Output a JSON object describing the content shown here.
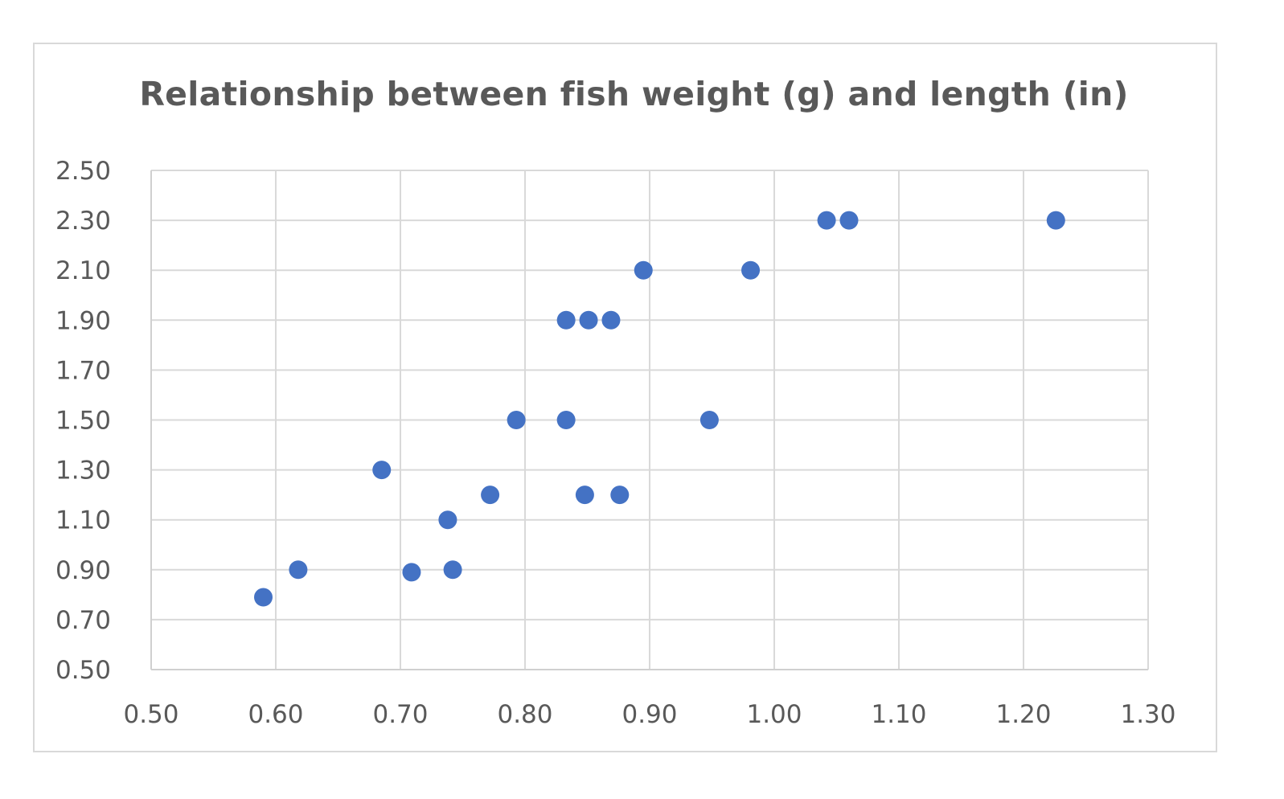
{
  "chart_data": {
    "type": "scatter",
    "title": "Relationship between fish weight (g) and length (in)",
    "xlabel": "",
    "ylabel": "",
    "xlim": [
      0.5,
      1.3
    ],
    "ylim": [
      0.5,
      2.5
    ],
    "x_ticks": [
      "0.50",
      "0.60",
      "0.70",
      "0.80",
      "0.90",
      "1.00",
      "1.10",
      "1.20",
      "1.30"
    ],
    "y_ticks": [
      "0.50",
      "0.70",
      "0.90",
      "1.10",
      "1.30",
      "1.50",
      "1.70",
      "1.90",
      "2.10",
      "2.30",
      "2.50"
    ],
    "grid": true,
    "legend": "none",
    "series": [
      {
        "color": "#4472c4",
        "points": [
          {
            "x": 0.59,
            "y": 0.79
          },
          {
            "x": 0.618,
            "y": 0.9
          },
          {
            "x": 0.685,
            "y": 1.3
          },
          {
            "x": 0.709,
            "y": 0.89
          },
          {
            "x": 0.738,
            "y": 1.1
          },
          {
            "x": 0.742,
            "y": 0.9
          },
          {
            "x": 0.772,
            "y": 1.2
          },
          {
            "x": 0.793,
            "y": 1.5
          },
          {
            "x": 0.833,
            "y": 1.5
          },
          {
            "x": 0.833,
            "y": 1.9
          },
          {
            "x": 0.848,
            "y": 1.2
          },
          {
            "x": 0.851,
            "y": 1.9
          },
          {
            "x": 0.869,
            "y": 1.9
          },
          {
            "x": 0.876,
            "y": 1.2
          },
          {
            "x": 0.895,
            "y": 2.1
          },
          {
            "x": 0.948,
            "y": 1.5
          },
          {
            "x": 0.981,
            "y": 2.1
          },
          {
            "x": 1.042,
            "y": 2.3
          },
          {
            "x": 1.06,
            "y": 2.3
          },
          {
            "x": 1.226,
            "y": 2.3
          }
        ]
      }
    ]
  }
}
